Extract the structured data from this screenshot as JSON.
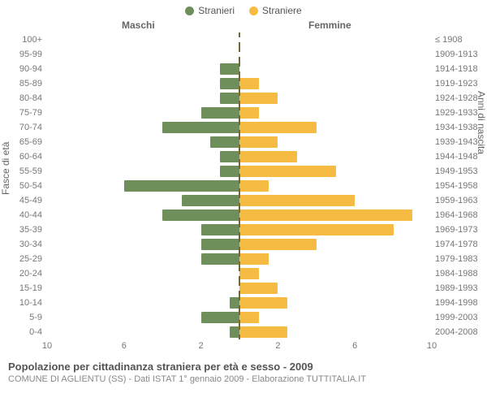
{
  "colors": {
    "male": "#6e8f5a",
    "female": "#f6bb42",
    "center_line": "#706a3b",
    "text": "#555555",
    "subtext": "#888888",
    "background": "#ffffff"
  },
  "legend": {
    "male": "Stranieri",
    "female": "Straniere"
  },
  "column_headers": {
    "male": "Maschi",
    "female": "Femmine"
  },
  "y_axis_left": "Fasce di età",
  "y_axis_right": "Anni di nascita",
  "x_axis": {
    "max": 10,
    "ticks": [
      10,
      6,
      2,
      2,
      6,
      10
    ]
  },
  "rows": [
    {
      "age": "100+",
      "birth": "≤ 1908",
      "m": 0.0,
      "f": 0.0
    },
    {
      "age": "95-99",
      "birth": "1909-1913",
      "m": 0.0,
      "f": 0.0
    },
    {
      "age": "90-94",
      "birth": "1914-1918",
      "m": 1.0,
      "f": 0.0
    },
    {
      "age": "85-89",
      "birth": "1919-1923",
      "m": 1.0,
      "f": 1.0
    },
    {
      "age": "80-84",
      "birth": "1924-1928",
      "m": 1.0,
      "f": 2.0
    },
    {
      "age": "75-79",
      "birth": "1929-1933",
      "m": 2.0,
      "f": 1.0
    },
    {
      "age": "70-74",
      "birth": "1934-1938",
      "m": 4.0,
      "f": 4.0
    },
    {
      "age": "65-69",
      "birth": "1939-1943",
      "m": 1.5,
      "f": 2.0
    },
    {
      "age": "60-64",
      "birth": "1944-1948",
      "m": 1.0,
      "f": 3.0
    },
    {
      "age": "55-59",
      "birth": "1949-1953",
      "m": 1.0,
      "f": 5.0
    },
    {
      "age": "50-54",
      "birth": "1954-1958",
      "m": 6.0,
      "f": 1.5
    },
    {
      "age": "45-49",
      "birth": "1959-1963",
      "m": 3.0,
      "f": 6.0
    },
    {
      "age": "40-44",
      "birth": "1964-1968",
      "m": 4.0,
      "f": 9.0
    },
    {
      "age": "35-39",
      "birth": "1969-1973",
      "m": 2.0,
      "f": 8.0
    },
    {
      "age": "30-34",
      "birth": "1974-1978",
      "m": 2.0,
      "f": 4.0
    },
    {
      "age": "25-29",
      "birth": "1979-1983",
      "m": 2.0,
      "f": 1.5
    },
    {
      "age": "20-24",
      "birth": "1984-1988",
      "m": 0.0,
      "f": 1.0
    },
    {
      "age": "15-19",
      "birth": "1989-1993",
      "m": 0.0,
      "f": 2.0
    },
    {
      "age": "10-14",
      "birth": "1994-1998",
      "m": 0.5,
      "f": 2.5
    },
    {
      "age": "5-9",
      "birth": "1999-2003",
      "m": 2.0,
      "f": 1.0
    },
    {
      "age": "0-4",
      "birth": "2004-2008",
      "m": 0.5,
      "f": 2.5
    }
  ],
  "caption": {
    "title": "Popolazione per cittadinanza straniera per età e sesso - 2009",
    "subtitle": "COMUNE DI AGLIENTU (SS) - Dati ISTAT 1° gennaio 2009 - Elaborazione TUTTITALIA.IT"
  }
}
